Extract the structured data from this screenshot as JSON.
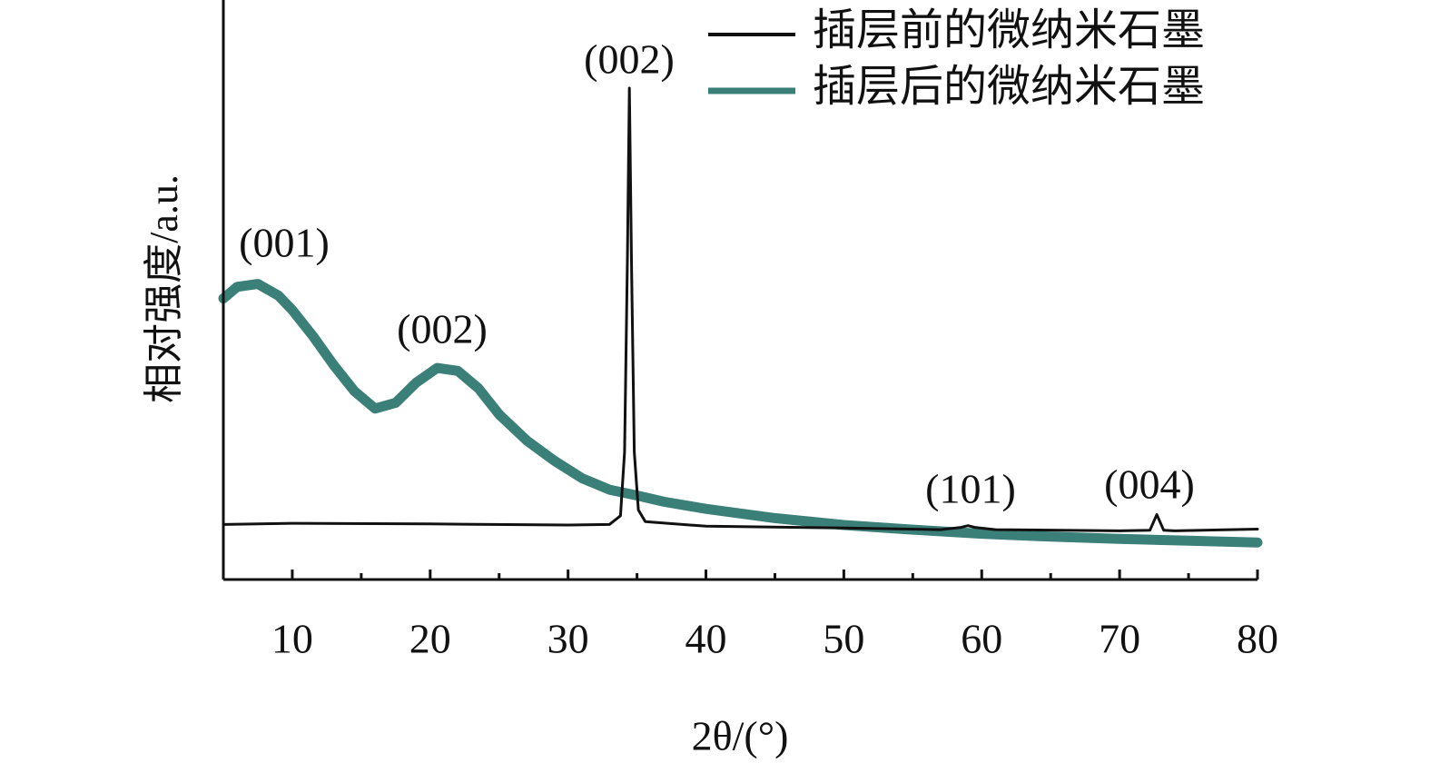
{
  "chart_data": {
    "type": "line",
    "x_label": "2θ/(°)",
    "y_label": "相对强度/a.u.",
    "xlim": [
      5,
      80
    ],
    "ylim": [
      0,
      100
    ],
    "xticks": [
      10,
      20,
      30,
      40,
      50,
      60,
      70,
      80
    ],
    "xminorticks": [
      15,
      25,
      35,
      45,
      55,
      65,
      75
    ],
    "legend": "upper right",
    "series": [
      {
        "name": "插层前的微纳米石墨",
        "color": "#111111",
        "x": [
          5,
          10,
          20,
          30,
          33,
          33.8,
          34.1,
          34.3,
          34.45,
          34.6,
          34.8,
          35.1,
          35.6,
          40,
          50,
          57,
          58.5,
          59,
          59.5,
          61,
          70,
          72.2,
          72.7,
          73.2,
          74,
          80
        ],
        "values": [
          9.5,
          9.7,
          9.6,
          9.4,
          9.5,
          11,
          22,
          55,
          84.8,
          55,
          22,
          12,
          10,
          9.2,
          8.9,
          8.6,
          9.0,
          9.3,
          9.0,
          8.6,
          8.4,
          8.5,
          11.2,
          8.5,
          8.4,
          8.7
        ]
      },
      {
        "name": "插层后的微纳米石墨",
        "color": "#3a7f78",
        "x": [
          5,
          6,
          7.5,
          9,
          10,
          11.5,
          13,
          14.5,
          16,
          17.5,
          19,
          20.5,
          22,
          23.5,
          25,
          27,
          29,
          31,
          32,
          33,
          35,
          37,
          40,
          45,
          50,
          55,
          60,
          65,
          70,
          75,
          80
        ],
        "values": [
          48.5,
          50.5,
          51,
          49,
          46.5,
          42,
          37,
          32.5,
          29.5,
          30.5,
          34,
          36.5,
          36,
          33,
          28.5,
          24,
          20.5,
          17.5,
          16.5,
          15.5,
          14.5,
          13.4,
          12.2,
          10.6,
          9.4,
          8.6,
          7.9,
          7.4,
          7,
          6.7,
          6.4
        ]
      }
    ],
    "annotations": [
      "(001)",
      "(002)",
      "(002)",
      "(101)",
      "(004)"
    ]
  }
}
